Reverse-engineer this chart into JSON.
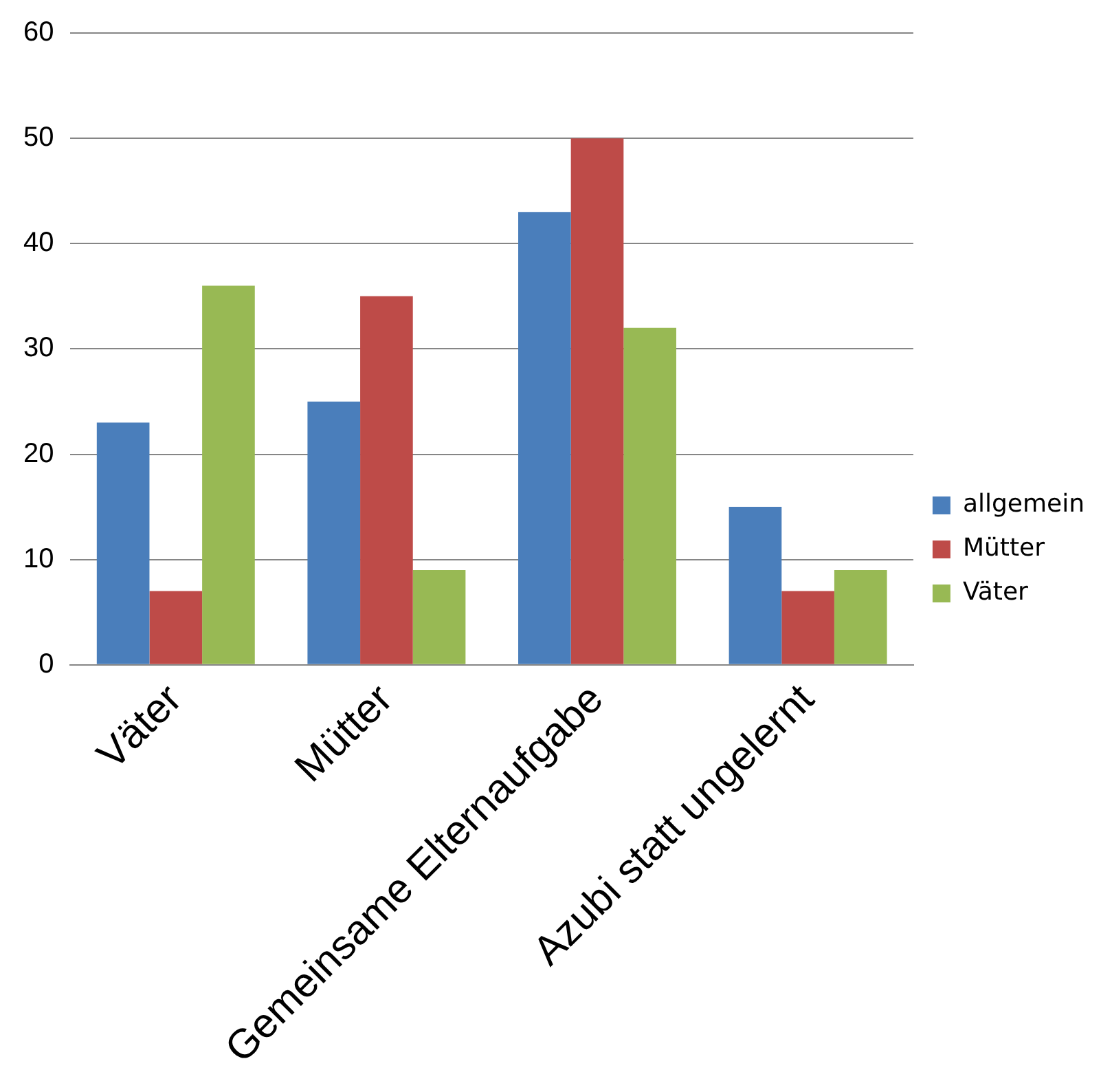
{
  "chart_data": {
    "type": "bar",
    "categories": [
      "Väter",
      "Mütter",
      "Gemeinsame Elternaufgabe",
      "Azubi statt ungelernt"
    ],
    "series": [
      {
        "name": "allgemein",
        "color": "#4a7ebb",
        "values": [
          23,
          25,
          43,
          15
        ]
      },
      {
        "name": "Mütter",
        "color": "#be4b48",
        "values": [
          7,
          35,
          50,
          7
        ]
      },
      {
        "name": "Väter",
        "color": "#98b954",
        "values": [
          36,
          9,
          32,
          9
        ]
      }
    ],
    "ylim": [
      0,
      60
    ],
    "yticks": [
      0,
      10,
      20,
      30,
      40,
      50,
      60
    ],
    "grid": "y",
    "legend": "right"
  }
}
